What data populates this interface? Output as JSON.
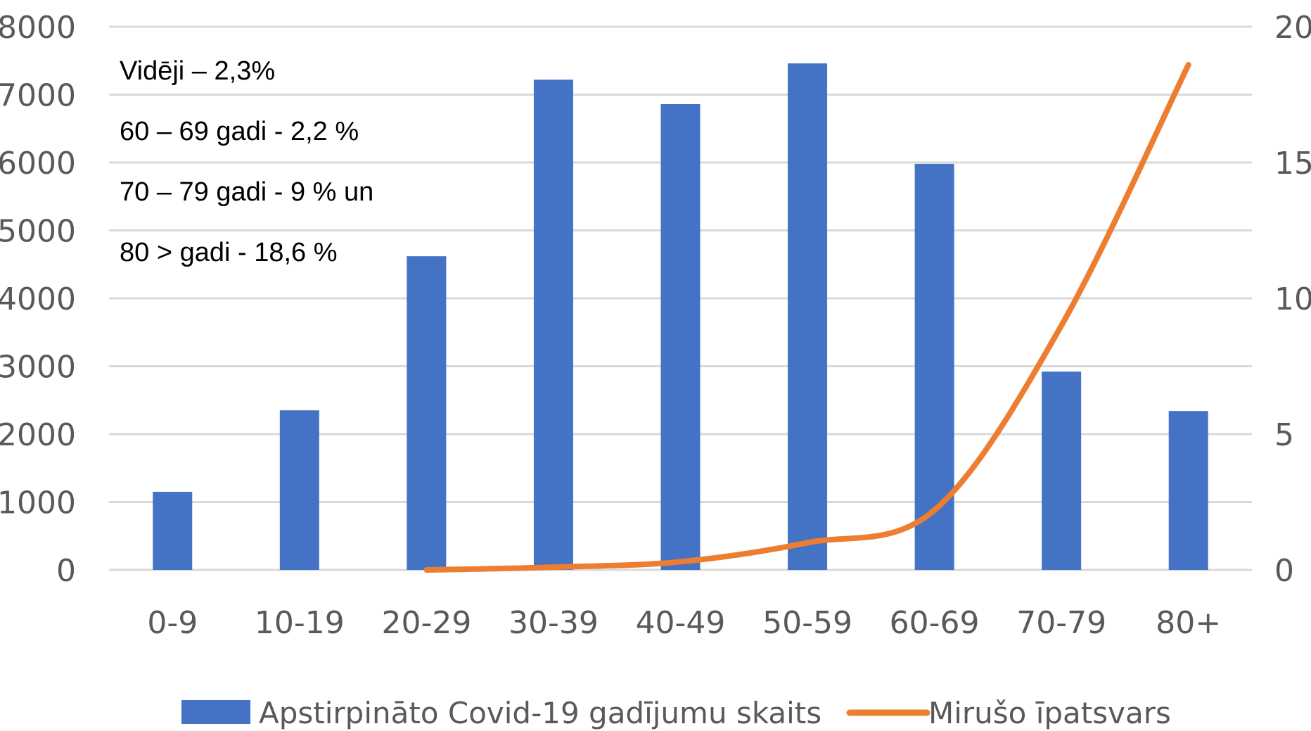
{
  "chart_data": {
    "type": "bar",
    "categories": [
      "0-9",
      "10-19",
      "20-29",
      "30-39",
      "40-49",
      "50-59",
      "60-69",
      "70-79",
      "80+"
    ],
    "series": [
      {
        "name": "Apstirpināto Covid-19 gadījumu skaits",
        "type": "bar",
        "axis": "left",
        "color": "#4472C4",
        "values": [
          1150,
          2350,
          4620,
          7220,
          6860,
          7460,
          5980,
          2920,
          2340
        ]
      },
      {
        "name": "Mirušo īpatsvars",
        "type": "line",
        "axis": "right",
        "color": "#ED7D31",
        "values": [
          null,
          null,
          0,
          0.1,
          0.3,
          1.0,
          2.2,
          9.0,
          18.6
        ]
      }
    ],
    "y_left": {
      "ylim": [
        0,
        8000
      ],
      "ticks": [
        "0",
        "1000",
        "2000",
        "3000",
        "4000",
        "5000",
        "6000",
        "7000",
        "8000"
      ]
    },
    "y_right": {
      "ylim": [
        0,
        20
      ],
      "ticks": [
        "0",
        "5",
        "10",
        "15",
        "20"
      ]
    },
    "annotations": [
      "Vidēji – 2,3%",
      "60 – 69 gadi - 2,2 %",
      "70 – 79 gadi - 9 % un",
      "80 > gadi - 18,6 %"
    ],
    "grid": true,
    "legend_position": "bottom"
  }
}
